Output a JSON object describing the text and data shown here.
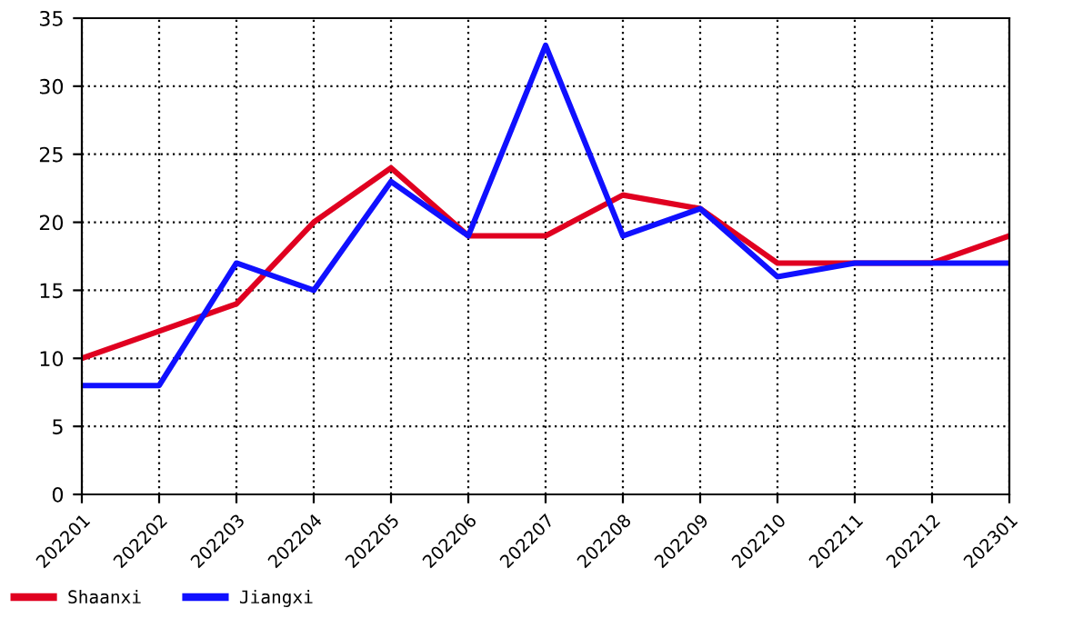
{
  "chart_data": {
    "type": "line",
    "categories": [
      "202201",
      "202202",
      "202203",
      "202204",
      "202205",
      "202206",
      "202207",
      "202208",
      "202209",
      "202210",
      "202211",
      "202212",
      "202301"
    ],
    "series": [
      {
        "name": "Shaanxi",
        "color": "#e00020",
        "values": [
          10,
          12,
          14,
          20,
          24,
          19,
          19,
          22,
          21,
          17,
          17,
          17,
          19
        ]
      },
      {
        "name": "Jiangxi",
        "color": "#1010ff",
        "values": [
          8,
          8,
          17,
          15,
          23,
          19,
          33,
          19,
          21,
          16,
          17,
          17,
          17
        ]
      }
    ],
    "ylim": [
      0,
      35
    ],
    "yticks": [
      0,
      5,
      10,
      15,
      20,
      25,
      30,
      35
    ],
    "grid": true,
    "legend": "bottom left",
    "marker": "none",
    "line_style": "solid"
  }
}
